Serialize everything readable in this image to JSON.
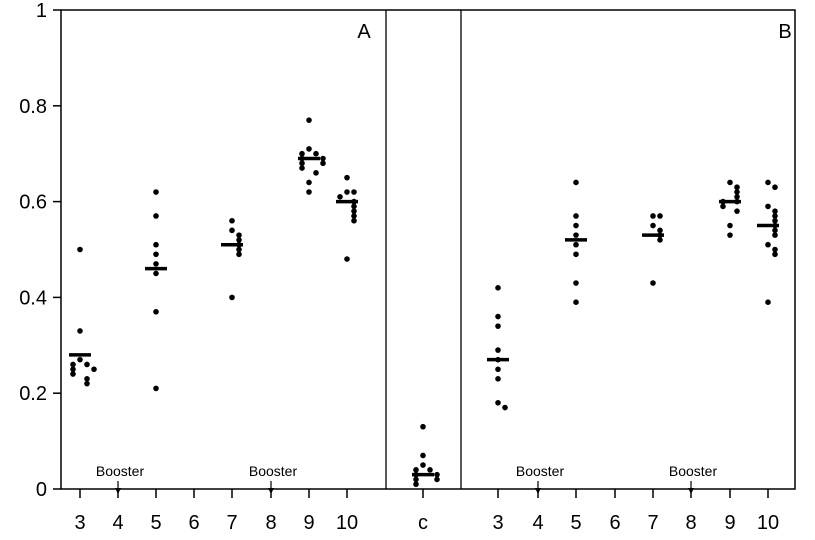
{
  "chart_data": {
    "type": "scatter",
    "ylim": [
      0,
      1
    ],
    "yticks": [
      0,
      0.2,
      0.4,
      0.6,
      0.8,
      1
    ],
    "ytick_labels": [
      "0",
      "0.2",
      "0.4",
      "0.6",
      "0.8",
      "1"
    ],
    "grid": false,
    "x_categories": [
      "3",
      "4",
      "5",
      "6",
      "7",
      "8",
      "9",
      "10",
      "c",
      "3",
      "4",
      "5",
      "6",
      "7",
      "8",
      "9",
      "10"
    ],
    "panels": [
      {
        "label": "A",
        "groups": [
          {
            "x": "3",
            "points": [
              0.5,
              0.33,
              0.27,
              0.26,
              0.26,
              0.25,
              0.25,
              0.24,
              0.23,
              0.22
            ],
            "mean": 0.28
          },
          {
            "x": "5",
            "points": [
              0.62,
              0.57,
              0.51,
              0.49,
              0.47,
              0.45,
              0.37,
              0.21
            ],
            "mean": 0.46
          },
          {
            "x": "7",
            "points": [
              0.56,
              0.54,
              0.53,
              0.52,
              0.51,
              0.5,
              0.49,
              0.4
            ],
            "mean": 0.51
          },
          {
            "x": "9",
            "points": [
              0.77,
              0.71,
              0.7,
              0.7,
              0.69,
              0.69,
              0.68,
              0.68,
              0.67,
              0.66,
              0.64,
              0.62
            ],
            "mean": 0.69
          },
          {
            "x": "10",
            "points": [
              0.65,
              0.62,
              0.62,
              0.61,
              0.6,
              0.59,
              0.58,
              0.57,
              0.56,
              0.48
            ],
            "mean": 0.6
          }
        ],
        "annotations": [
          {
            "text": "Booster",
            "x": "4"
          },
          {
            "text": "Booster",
            "x": "8"
          }
        ]
      },
      {
        "label": "",
        "groups": [
          {
            "x": "c",
            "points": [
              0.13,
              0.07,
              0.05,
              0.04,
              0.04,
              0.03,
              0.03,
              0.02,
              0.02,
              0.01
            ],
            "mean": 0.03
          }
        ],
        "annotations": []
      },
      {
        "label": "B",
        "groups": [
          {
            "x": "3",
            "points": [
              0.42,
              0.36,
              0.34,
              0.29,
              0.27,
              0.25,
              0.23,
              0.18,
              0.17
            ],
            "mean": 0.27
          },
          {
            "x": "5",
            "points": [
              0.64,
              0.57,
              0.55,
              0.53,
              0.51,
              0.49,
              0.43,
              0.39
            ],
            "mean": 0.52
          },
          {
            "x": "7",
            "points": [
              0.57,
              0.57,
              0.55,
              0.54,
              0.53,
              0.52,
              0.43
            ],
            "mean": 0.53
          },
          {
            "x": "9",
            "points": [
              0.64,
              0.63,
              0.62,
              0.61,
              0.6,
              0.6,
              0.59,
              0.58,
              0.55,
              0.53
            ],
            "mean": 0.6
          },
          {
            "x": "10",
            "points": [
              0.64,
              0.63,
              0.59,
              0.58,
              0.57,
              0.56,
              0.55,
              0.54,
              0.53,
              0.51,
              0.5,
              0.49,
              0.39
            ],
            "mean": 0.55
          }
        ],
        "annotations": [
          {
            "text": "Booster",
            "x": "4"
          },
          {
            "text": "Booster",
            "x": "8"
          }
        ]
      }
    ]
  }
}
